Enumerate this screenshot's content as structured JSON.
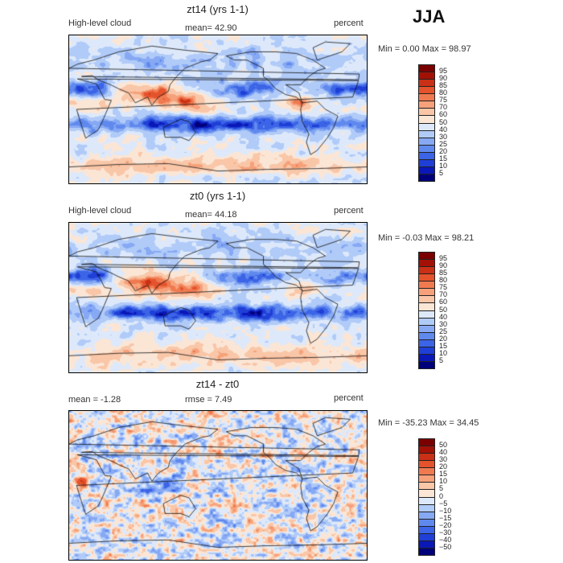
{
  "season": "JJA",
  "panels": [
    {
      "title": "zt14 (yrs 1-1)",
      "left_label": "High-level cloud",
      "mid_label": "mean=   42.90",
      "right_label": "percent",
      "minmax": "Min =    0.00  Max =   98.97",
      "kind": "field",
      "field_mean": 42.9,
      "colorbar_labels": [
        "95",
        "90",
        "85",
        "80",
        "75",
        "70",
        "60",
        "50",
        "40",
        "30",
        "25",
        "20",
        "15",
        "10",
        "5"
      ]
    },
    {
      "title": "zt0 (yrs 1-1)",
      "left_label": "High-level cloud",
      "mid_label": "mean=   44.18",
      "right_label": "percent",
      "minmax": "Min =  -0.03  Max =   98.21",
      "kind": "field",
      "field_mean": 44.18,
      "colorbar_labels": [
        "95",
        "90",
        "85",
        "80",
        "75",
        "70",
        "60",
        "50",
        "40",
        "30",
        "25",
        "20",
        "15",
        "10",
        "5"
      ]
    },
    {
      "title": "zt14 - zt0",
      "left_label": "mean =   -1.28",
      "mid_label": "rmse =    7.49",
      "right_label": "percent",
      "minmax": "Min = -35.23  Max =   34.45",
      "kind": "diff",
      "field_mean": -1.28,
      "colorbar_labels": [
        "50",
        "40",
        "30",
        "20",
        "15",
        "10",
        "5",
        "0",
        "−5",
        "−10",
        "−15",
        "−20",
        "−30",
        "−40",
        "−50"
      ]
    }
  ],
  "colors": {
    "field_scale": [
      "#00007a",
      "#0a18b8",
      "#1f3fd6",
      "#3c64e6",
      "#6089ee",
      "#87a9f4",
      "#b1cbf8",
      "#dde9fb",
      "#fbe6d6",
      "#f9c6a8",
      "#f6a17a",
      "#f07a50",
      "#e4532c",
      "#c93016",
      "#a31106",
      "#7a0000"
    ],
    "diff_scale": [
      "#00007a",
      "#0a18b8",
      "#1f3fd6",
      "#3c64e6",
      "#6089ee",
      "#87a9f4",
      "#b1cbf8",
      "#dde9fb",
      "#fbe6d6",
      "#f9c6a8",
      "#f6a17a",
      "#f07a50",
      "#e4532c",
      "#c93016",
      "#a31106",
      "#7a0000"
    ]
  },
  "chart_data": [
    {
      "type": "heatmap",
      "title": "zt14 (yrs 1-1)",
      "variable": "High-level cloud",
      "units": "percent",
      "mean": 42.9,
      "min": 0.0,
      "max": 98.97,
      "levels": [
        5,
        10,
        15,
        20,
        25,
        30,
        40,
        50,
        60,
        70,
        75,
        80,
        85,
        90,
        95
      ]
    },
    {
      "type": "heatmap",
      "title": "zt0 (yrs 1-1)",
      "variable": "High-level cloud",
      "units": "percent",
      "mean": 44.18,
      "min": -0.03,
      "max": 98.21,
      "levels": [
        5,
        10,
        15,
        20,
        25,
        30,
        40,
        50,
        60,
        70,
        75,
        80,
        85,
        90,
        95
      ]
    },
    {
      "type": "heatmap",
      "title": "zt14 - zt0",
      "units": "percent",
      "mean": -1.28,
      "rmse": 7.49,
      "min": -35.23,
      "max": 34.45,
      "levels": [
        -50,
        -40,
        -30,
        -20,
        -15,
        -10,
        -5,
        0,
        5,
        10,
        15,
        20,
        30,
        40,
        50
      ]
    }
  ]
}
